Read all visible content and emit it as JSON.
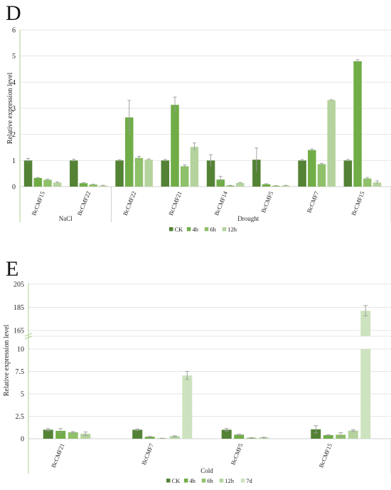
{
  "colors": {
    "CK": "#548235",
    "4h": "#70ad47",
    "6h": "#8fc06a",
    "12h": "#b4d39d",
    "7d": "#cde3bf",
    "grid": "#e6e6e6",
    "error": "#9a9a9a"
  },
  "chart_data": [
    {
      "panel": "D",
      "type": "bar",
      "ylabel": "Relative expression level",
      "ylim": [
        0,
        6
      ],
      "yticks": [
        "0",
        "1",
        "2",
        "3",
        "4",
        "5",
        "6"
      ],
      "grid": true,
      "legend_position": "bottom-center",
      "series_names": [
        "CK",
        "4h",
        "6h",
        "12h"
      ],
      "categories": [
        "BcCMF15",
        "BcCMF22",
        "BcCMF22",
        "BcCMF21",
        "BcCMF14",
        "BcCMF5",
        "BcCMF7",
        "BcCMF15"
      ],
      "groups": [
        {
          "label": "NaCl",
          "categories": [
            0,
            1
          ]
        },
        {
          "label": "Drought",
          "categories": [
            2,
            3,
            4,
            5,
            6,
            7
          ]
        }
      ],
      "series": [
        {
          "name": "CK",
          "values": [
            1.0,
            1.0,
            1.0,
            1.0,
            1.0,
            1.03,
            1.0,
            1.0
          ],
          "errors": [
            0.08,
            0.05,
            0.03,
            0.04,
            0.22,
            0.45,
            0.04,
            0.04
          ]
        },
        {
          "name": "4h",
          "values": [
            0.33,
            0.13,
            2.65,
            3.13,
            0.27,
            0.09,
            1.4,
            4.8
          ],
          "errors": [
            0.02,
            0.02,
            0.65,
            0.3,
            0.12,
            0.02,
            0.04,
            0.06
          ]
        },
        {
          "name": "6h",
          "values": [
            0.26,
            0.08,
            1.1,
            0.78,
            0.04,
            0.03,
            0.86,
            0.31
          ],
          "errors": [
            0.03,
            0.01,
            0.06,
            0.05,
            0.01,
            0.01,
            0.03,
            0.04
          ]
        },
        {
          "name": "12h",
          "values": [
            0.15,
            0.04,
            1.03,
            1.52,
            0.14,
            0.04,
            3.31,
            0.16
          ],
          "errors": [
            0.03,
            0.01,
            0.03,
            0.15,
            0.02,
            0.01,
            0.02,
            0.06
          ]
        }
      ]
    },
    {
      "panel": "E",
      "type": "bar",
      "ylabel": "Relative expression level",
      "axis_break": {
        "lower": [
          0,
          10
        ],
        "upper": [
          160,
          205
        ]
      },
      "yticks_lower": [
        "0",
        "2.5",
        "5",
        "7.5",
        "10"
      ],
      "yticks_upper": [
        "165",
        "185",
        "205"
      ],
      "grid": true,
      "legend_position": "bottom-center",
      "series_names": [
        "CK",
        "4h",
        "6h",
        "12h",
        "7d"
      ],
      "categories": [
        "BcCMF21",
        "BcCMF7",
        "BcCMF5",
        "BcCMF15"
      ],
      "groups": [
        {
          "label": "Cold",
          "categories": [
            0,
            1,
            2,
            3
          ]
        }
      ],
      "series": [
        {
          "name": "CK",
          "values": [
            1.0,
            1.0,
            1.0,
            1.05
          ],
          "errors": [
            0.12,
            0.08,
            0.15,
            0.4
          ]
        },
        {
          "name": "4h",
          "values": [
            0.88,
            0.22,
            0.45,
            0.4
          ],
          "errors": [
            0.25,
            0.04,
            0.05,
            0.04
          ]
        },
        {
          "name": "6h",
          "values": [
            0.72,
            0.05,
            0.1,
            0.45
          ],
          "errors": [
            0.08,
            0.01,
            0.02,
            0.22
          ]
        },
        {
          "name": "12h",
          "values": [
            0.55,
            0.28,
            0.13,
            0.9
          ],
          "errors": [
            0.2,
            0.04,
            0.03,
            0.1
          ]
        },
        {
          "name": "7d",
          "values": [
            0.0,
            7.05,
            0.0,
            182.0
          ],
          "errors": [
            0.0,
            0.45,
            0.0,
            4.5
          ]
        }
      ]
    }
  ]
}
